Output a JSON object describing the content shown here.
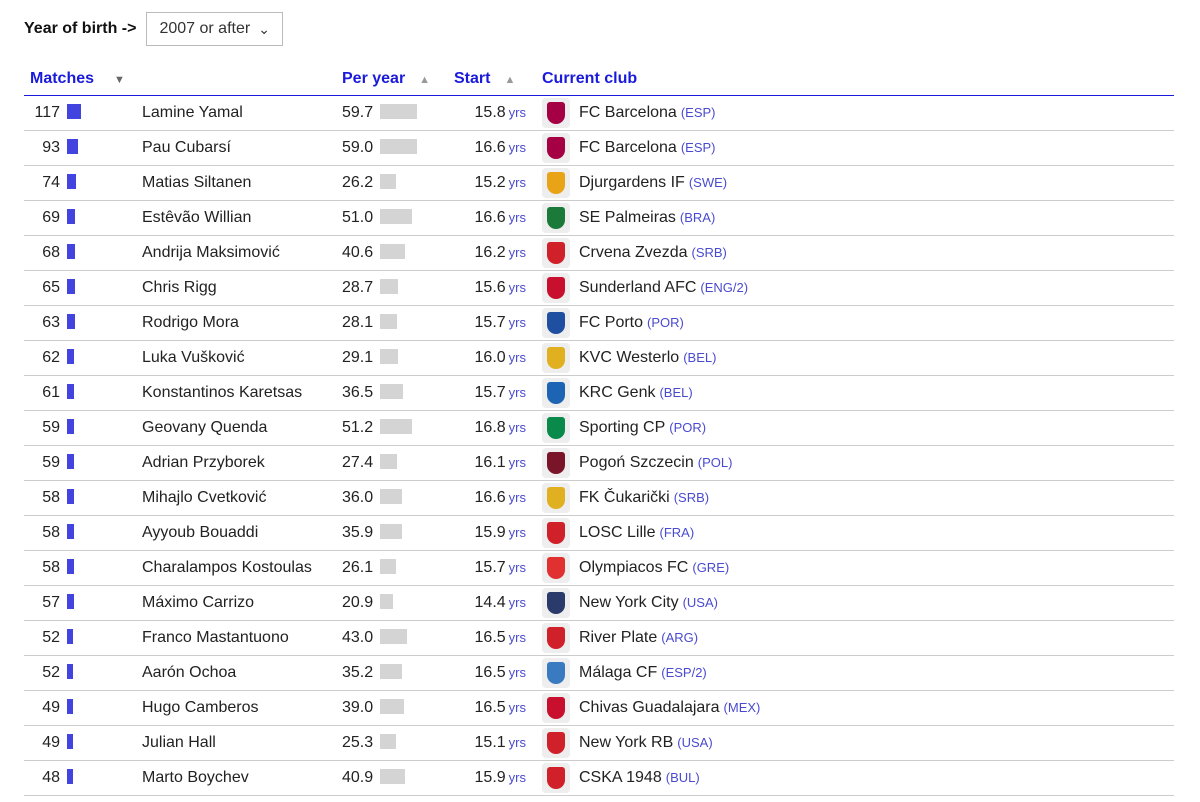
{
  "filter": {
    "label": "Year of birth ->",
    "value": "2007 or after"
  },
  "headers": {
    "matches": "Matches",
    "per_year": "Per year",
    "start": "Start",
    "club": "Current club"
  },
  "unit": "yrs",
  "rows": [
    {
      "m": 117,
      "name": "Lamine Yamal",
      "py": "59.7",
      "start": "15.8",
      "club": "FC Barcelona",
      "cty": "(ESP)",
      "color": "#a50044"
    },
    {
      "m": 93,
      "name": "Pau Cubarsí",
      "py": "59.0",
      "start": "16.6",
      "club": "FC Barcelona",
      "cty": "(ESP)",
      "color": "#a50044"
    },
    {
      "m": 74,
      "name": "Matias Siltanen",
      "py": "26.2",
      "start": "15.2",
      "club": "Djurgardens IF",
      "cty": "(SWE)",
      "color": "#e8a317"
    },
    {
      "m": 69,
      "name": "Estêvão Willian",
      "py": "51.0",
      "start": "16.6",
      "club": "SE Palmeiras",
      "cty": "(BRA)",
      "color": "#1b7a3a"
    },
    {
      "m": 68,
      "name": "Andrija Maksimović",
      "py": "40.6",
      "start": "16.2",
      "club": "Crvena Zvezda",
      "cty": "(SRB)",
      "color": "#d0202a"
    },
    {
      "m": 65,
      "name": "Chris Rigg",
      "py": "28.7",
      "start": "15.6",
      "club": "Sunderland AFC",
      "cty": "(ENG/2)",
      "color": "#c8102e"
    },
    {
      "m": 63,
      "name": "Rodrigo Mora",
      "py": "28.1",
      "start": "15.7",
      "club": "FC Porto",
      "cty": "(POR)",
      "color": "#1f4fa0"
    },
    {
      "m": 62,
      "name": "Luka Vušković",
      "py": "29.1",
      "start": "16.0",
      "club": "KVC Westerlo",
      "cty": "(BEL)",
      "color": "#e0b020"
    },
    {
      "m": 61,
      "name": "Konstantinos Karetsas",
      "py": "36.5",
      "start": "15.7",
      "club": "KRC Genk",
      "cty": "(BEL)",
      "color": "#1e64b4"
    },
    {
      "m": 59,
      "name": "Geovany Quenda",
      "py": "51.2",
      "start": "16.8",
      "club": "Sporting CP",
      "cty": "(POR)",
      "color": "#0a8a4a"
    },
    {
      "m": 59,
      "name": "Adrian Przyborek",
      "py": "27.4",
      "start": "16.1",
      "club": "Pogoń Szczecin",
      "cty": "(POL)",
      "color": "#7a1428"
    },
    {
      "m": 58,
      "name": "Mihajlo Cvetković",
      "py": "36.0",
      "start": "16.6",
      "club": "FK Čukarički",
      "cty": "(SRB)",
      "color": "#e0b020"
    },
    {
      "m": 58,
      "name": "Ayyoub Bouaddi",
      "py": "35.9",
      "start": "15.9",
      "club": "LOSC Lille",
      "cty": "(FRA)",
      "color": "#d0202a"
    },
    {
      "m": 58,
      "name": "Charalampos Kostoulas",
      "py": "26.1",
      "start": "15.7",
      "club": "Olympiacos FC",
      "cty": "(GRE)",
      "color": "#e03030"
    },
    {
      "m": 57,
      "name": "Máximo Carrizo",
      "py": "20.9",
      "start": "14.4",
      "club": "New York City",
      "cty": "(USA)",
      "color": "#2a3a6a"
    },
    {
      "m": 52,
      "name": "Franco Mastantuono",
      "py": "43.0",
      "start": "16.5",
      "club": "River Plate",
      "cty": "(ARG)",
      "color": "#d0202a"
    },
    {
      "m": 52,
      "name": "Aarón Ochoa",
      "py": "35.2",
      "start": "16.5",
      "club": "Málaga CF",
      "cty": "(ESP/2)",
      "color": "#3a7ac0"
    },
    {
      "m": 49,
      "name": "Hugo Camberos",
      "py": "39.0",
      "start": "16.5",
      "club": "Chivas Guadalajara",
      "cty": "(MEX)",
      "color": "#c8102e"
    },
    {
      "m": 49,
      "name": "Julian Hall",
      "py": "25.3",
      "start": "15.1",
      "club": "New York RB",
      "cty": "(USA)",
      "color": "#d0202a"
    },
    {
      "m": 48,
      "name": "Marto Boychev",
      "py": "40.9",
      "start": "15.9",
      "club": "CSKA 1948",
      "cty": "(BUL)",
      "color": "#d0202a"
    }
  ]
}
